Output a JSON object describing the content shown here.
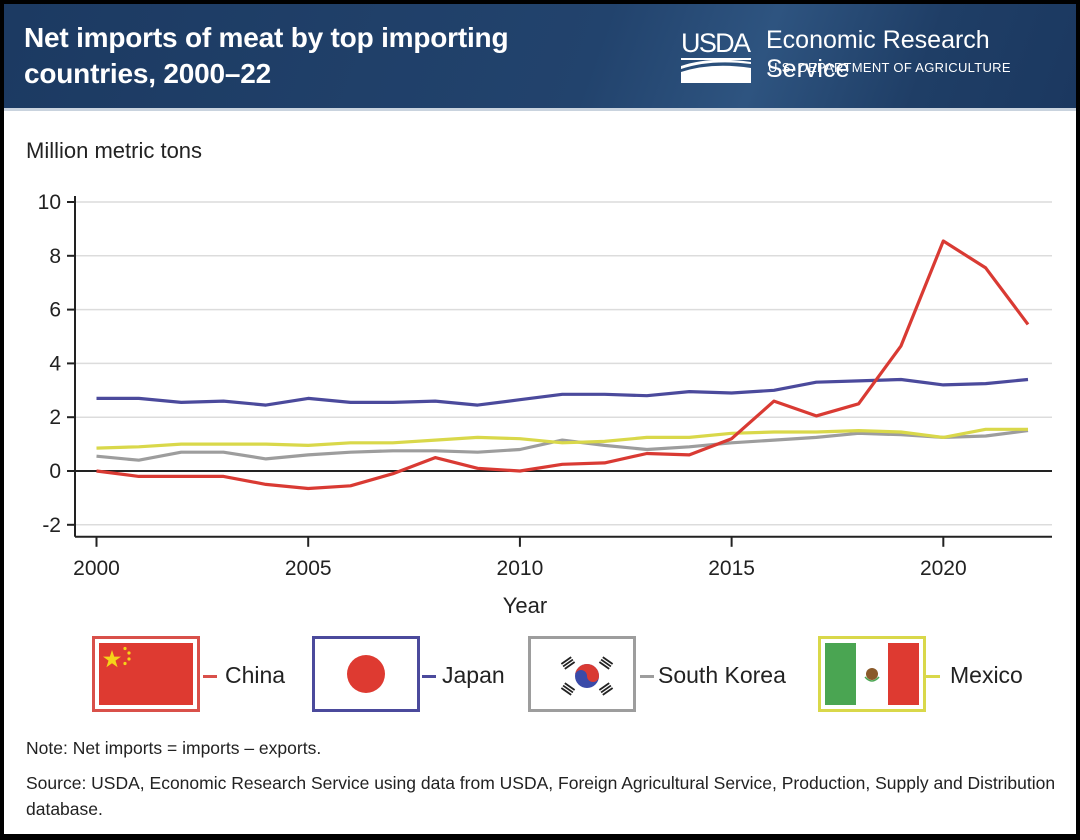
{
  "header": {
    "title_line1": "Net imports of meat by top importing",
    "title_line2": "countries, 2000–22",
    "logo_text": "USDA",
    "agency_name": "Economic Research Service",
    "department": "U.S. DEPARTMENT OF AGRICULTURE"
  },
  "chart_data": {
    "type": "line",
    "title": "Net imports of meat by top importing countries, 2000–22",
    "xlabel": "Year",
    "ylabel": "Million metric tons",
    "x": [
      2000,
      2001,
      2002,
      2003,
      2004,
      2005,
      2006,
      2007,
      2008,
      2009,
      2010,
      2011,
      2012,
      2013,
      2014,
      2015,
      2016,
      2017,
      2018,
      2019,
      2020,
      2021,
      2022
    ],
    "xlim": [
      2000,
      2022
    ],
    "ylim": [
      -2,
      10
    ],
    "x_ticks": [
      2000,
      2005,
      2010,
      2015,
      2020
    ],
    "y_ticks": [
      -2,
      0,
      2,
      4,
      6,
      8,
      10
    ],
    "grid": true,
    "legend_position": "bottom",
    "series": [
      {
        "name": "China",
        "color": "#d93a33",
        "values": [
          0,
          -0.2,
          -0.2,
          -0.2,
          -0.5,
          -0.65,
          -0.55,
          -0.1,
          0.5,
          0.1,
          0.0,
          0.25,
          0.3,
          0.65,
          0.6,
          1.2,
          2.6,
          2.05,
          2.5,
          4.65,
          8.55,
          7.55,
          5.45
        ]
      },
      {
        "name": "Japan",
        "color": "#4b4a9c",
        "values": [
          2.7,
          2.7,
          2.55,
          2.6,
          2.45,
          2.7,
          2.55,
          2.55,
          2.6,
          2.45,
          2.65,
          2.85,
          2.85,
          2.8,
          2.95,
          2.9,
          3.0,
          3.3,
          3.35,
          3.4,
          3.2,
          3.25,
          3.4
        ]
      },
      {
        "name": "South Korea",
        "color": "#9d9d9d",
        "values": [
          0.55,
          0.4,
          0.7,
          0.7,
          0.45,
          0.6,
          0.7,
          0.75,
          0.75,
          0.7,
          0.8,
          1.15,
          0.95,
          0.8,
          0.9,
          1.05,
          1.15,
          1.25,
          1.4,
          1.35,
          1.25,
          1.3,
          1.5
        ]
      },
      {
        "name": "Mexico",
        "color": "#d9d84a",
        "values": [
          0.85,
          0.9,
          1.0,
          1.0,
          1.0,
          0.95,
          1.05,
          1.05,
          1.15,
          1.25,
          1.2,
          1.05,
          1.1,
          1.25,
          1.25,
          1.4,
          1.45,
          1.45,
          1.5,
          1.45,
          1.25,
          1.55,
          1.55
        ]
      }
    ]
  },
  "legend": [
    {
      "label": "China",
      "flag": "china-flag"
    },
    {
      "label": "Japan",
      "flag": "japan-flag"
    },
    {
      "label": "South Korea",
      "flag": "south-korea-flag"
    },
    {
      "label": "Mexico",
      "flag": "mexico-flag"
    }
  ],
  "footer": {
    "note": "Note: Net imports = imports – exports.",
    "source": "Source: USDA, Economic Research Service using data from USDA, Foreign Agricultural Service, Production, Supply and Distribution database."
  }
}
